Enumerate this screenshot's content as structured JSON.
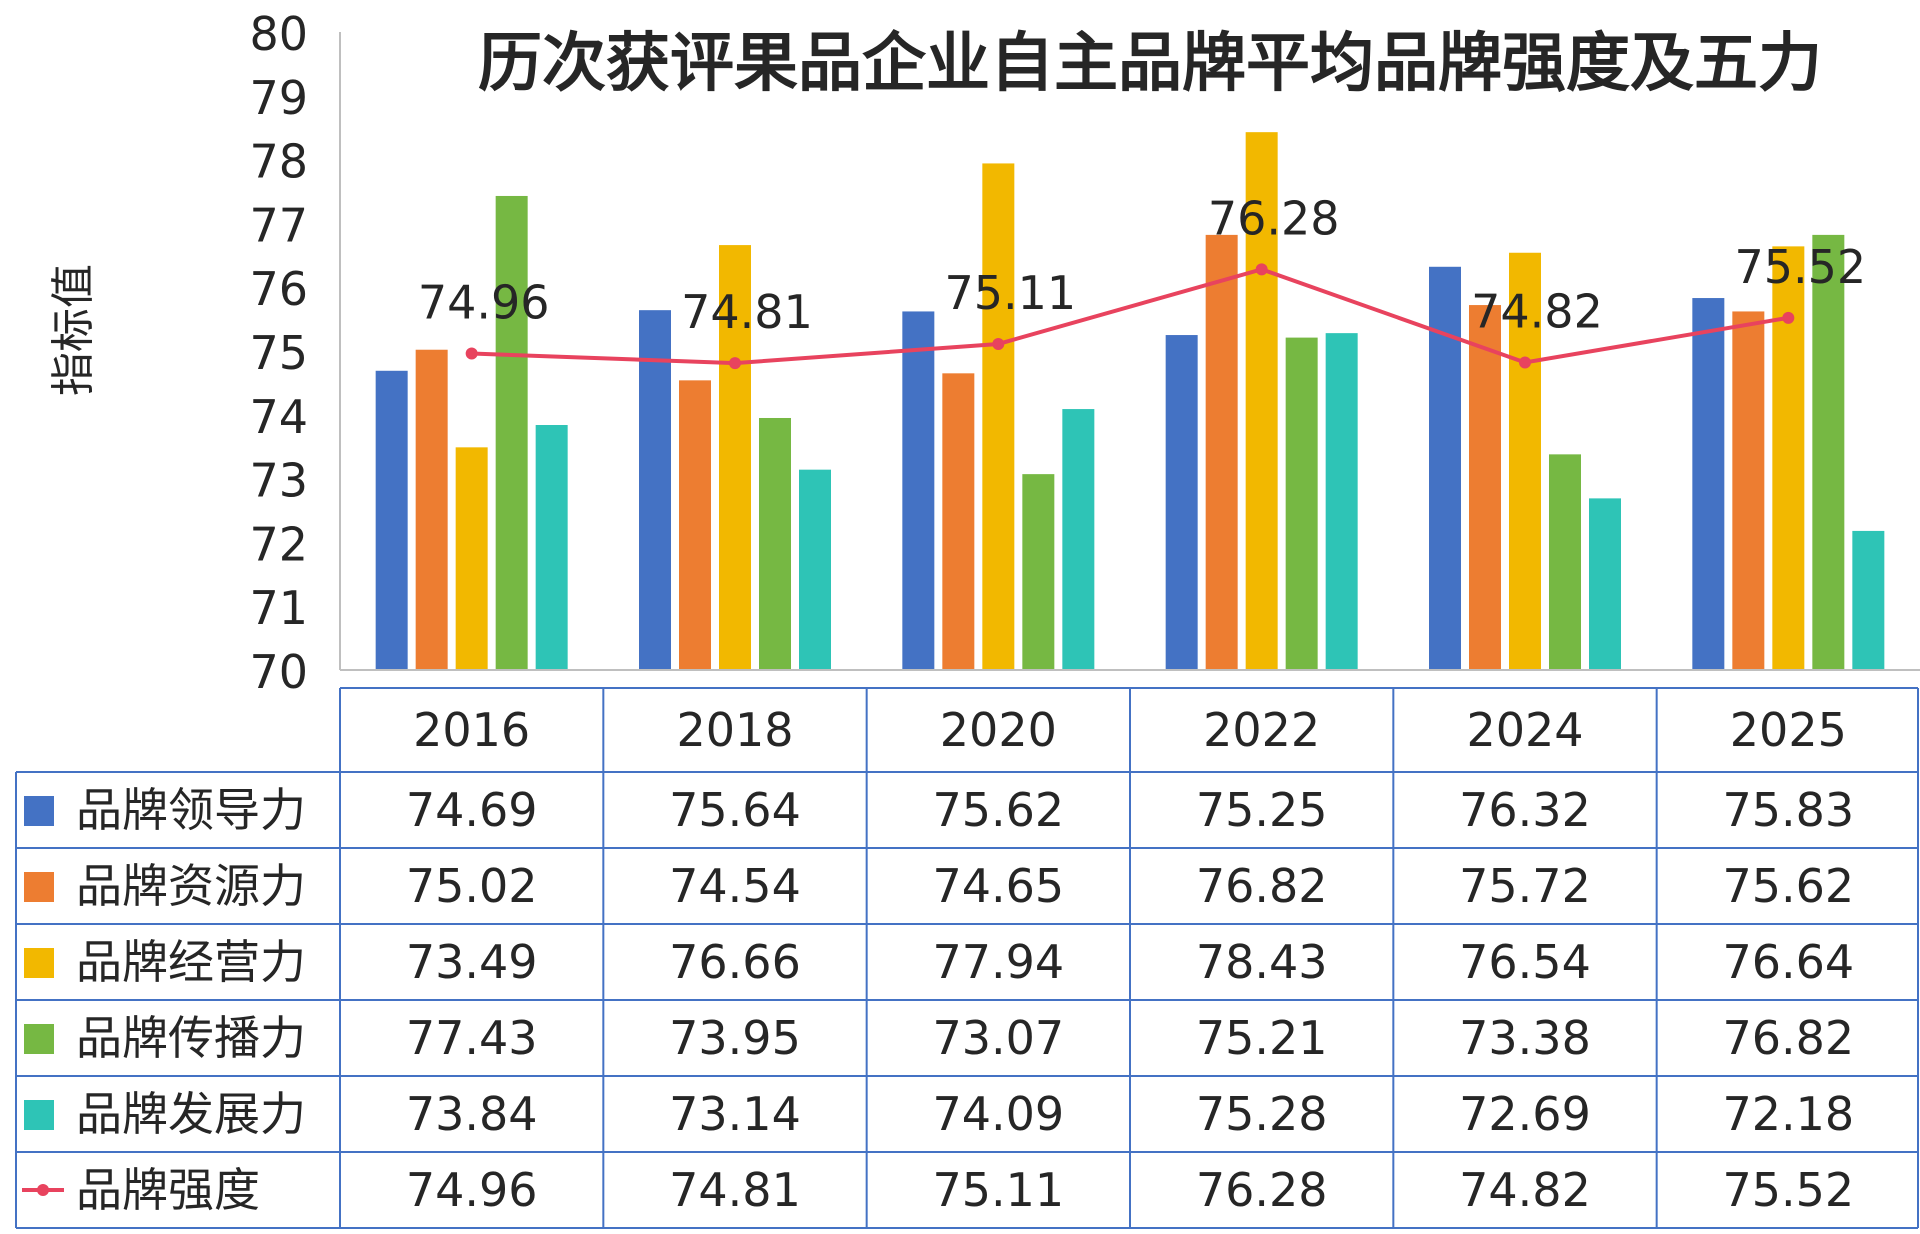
{
  "chart_data": {
    "type": "bar",
    "title": "历次获评果品企业自主品牌平均品牌强度及五力",
    "ylabel": "指标值",
    "ylim": [
      70,
      80
    ],
    "yticks": [
      70,
      71,
      72,
      73,
      74,
      75,
      76,
      77,
      78,
      79,
      80
    ],
    "categories": [
      "2016",
      "2018",
      "2020",
      "2022",
      "2024",
      "2025"
    ],
    "series": [
      {
        "name": "品牌领导力",
        "kind": "bar",
        "color": "#4472C4",
        "values": [
          74.69,
          75.64,
          75.62,
          75.25,
          76.32,
          75.83
        ]
      },
      {
        "name": "品牌资源力",
        "kind": "bar",
        "color": "#ED7D31",
        "values": [
          75.02,
          74.54,
          74.65,
          76.82,
          75.72,
          75.62
        ]
      },
      {
        "name": "品牌经营力",
        "kind": "bar",
        "color": "#F2B800",
        "values": [
          73.49,
          76.66,
          77.94,
          78.43,
          76.54,
          76.64
        ]
      },
      {
        "name": "品牌传播力",
        "kind": "bar",
        "color": "#76B843",
        "values": [
          77.43,
          73.95,
          73.07,
          75.21,
          73.38,
          76.82
        ]
      },
      {
        "name": "品牌发展力",
        "kind": "bar",
        "color": "#2EC4B6",
        "values": [
          73.84,
          73.14,
          74.09,
          75.28,
          72.69,
          72.18
        ]
      },
      {
        "name": "品牌强度",
        "kind": "line",
        "color": "#E8435E",
        "values": [
          74.96,
          74.81,
          75.11,
          76.28,
          74.82,
          75.52
        ]
      }
    ],
    "data_labels": [
      "74.96",
      "74.81",
      "75.11",
      "76.28",
      "74.82",
      "75.52"
    ],
    "table_rows": [
      [
        "74.69",
        "75.64",
        "75.62",
        "75.25",
        "76.32",
        "75.83"
      ],
      [
        "75.02",
        "74.54",
        "74.65",
        "76.82",
        "75.72",
        "75.62"
      ],
      [
        "73.49",
        "76.66",
        "77.94",
        "78.43",
        "76.54",
        "76.64"
      ],
      [
        "77.43",
        "73.95",
        "73.07",
        "75.21",
        "73.38",
        "76.82"
      ],
      [
        "73.84",
        "73.14",
        "74.09",
        "75.28",
        "72.69",
        "72.18"
      ],
      [
        "74.96",
        "74.81",
        "75.11",
        "76.28",
        "74.82",
        "75.52"
      ]
    ],
    "grid": false,
    "legend_placement": "data-table-left",
    "colors": {
      "axis": "#bfbfbf",
      "table_border": "#4472C4",
      "text": "#262626",
      "title": "#262626"
    }
  }
}
